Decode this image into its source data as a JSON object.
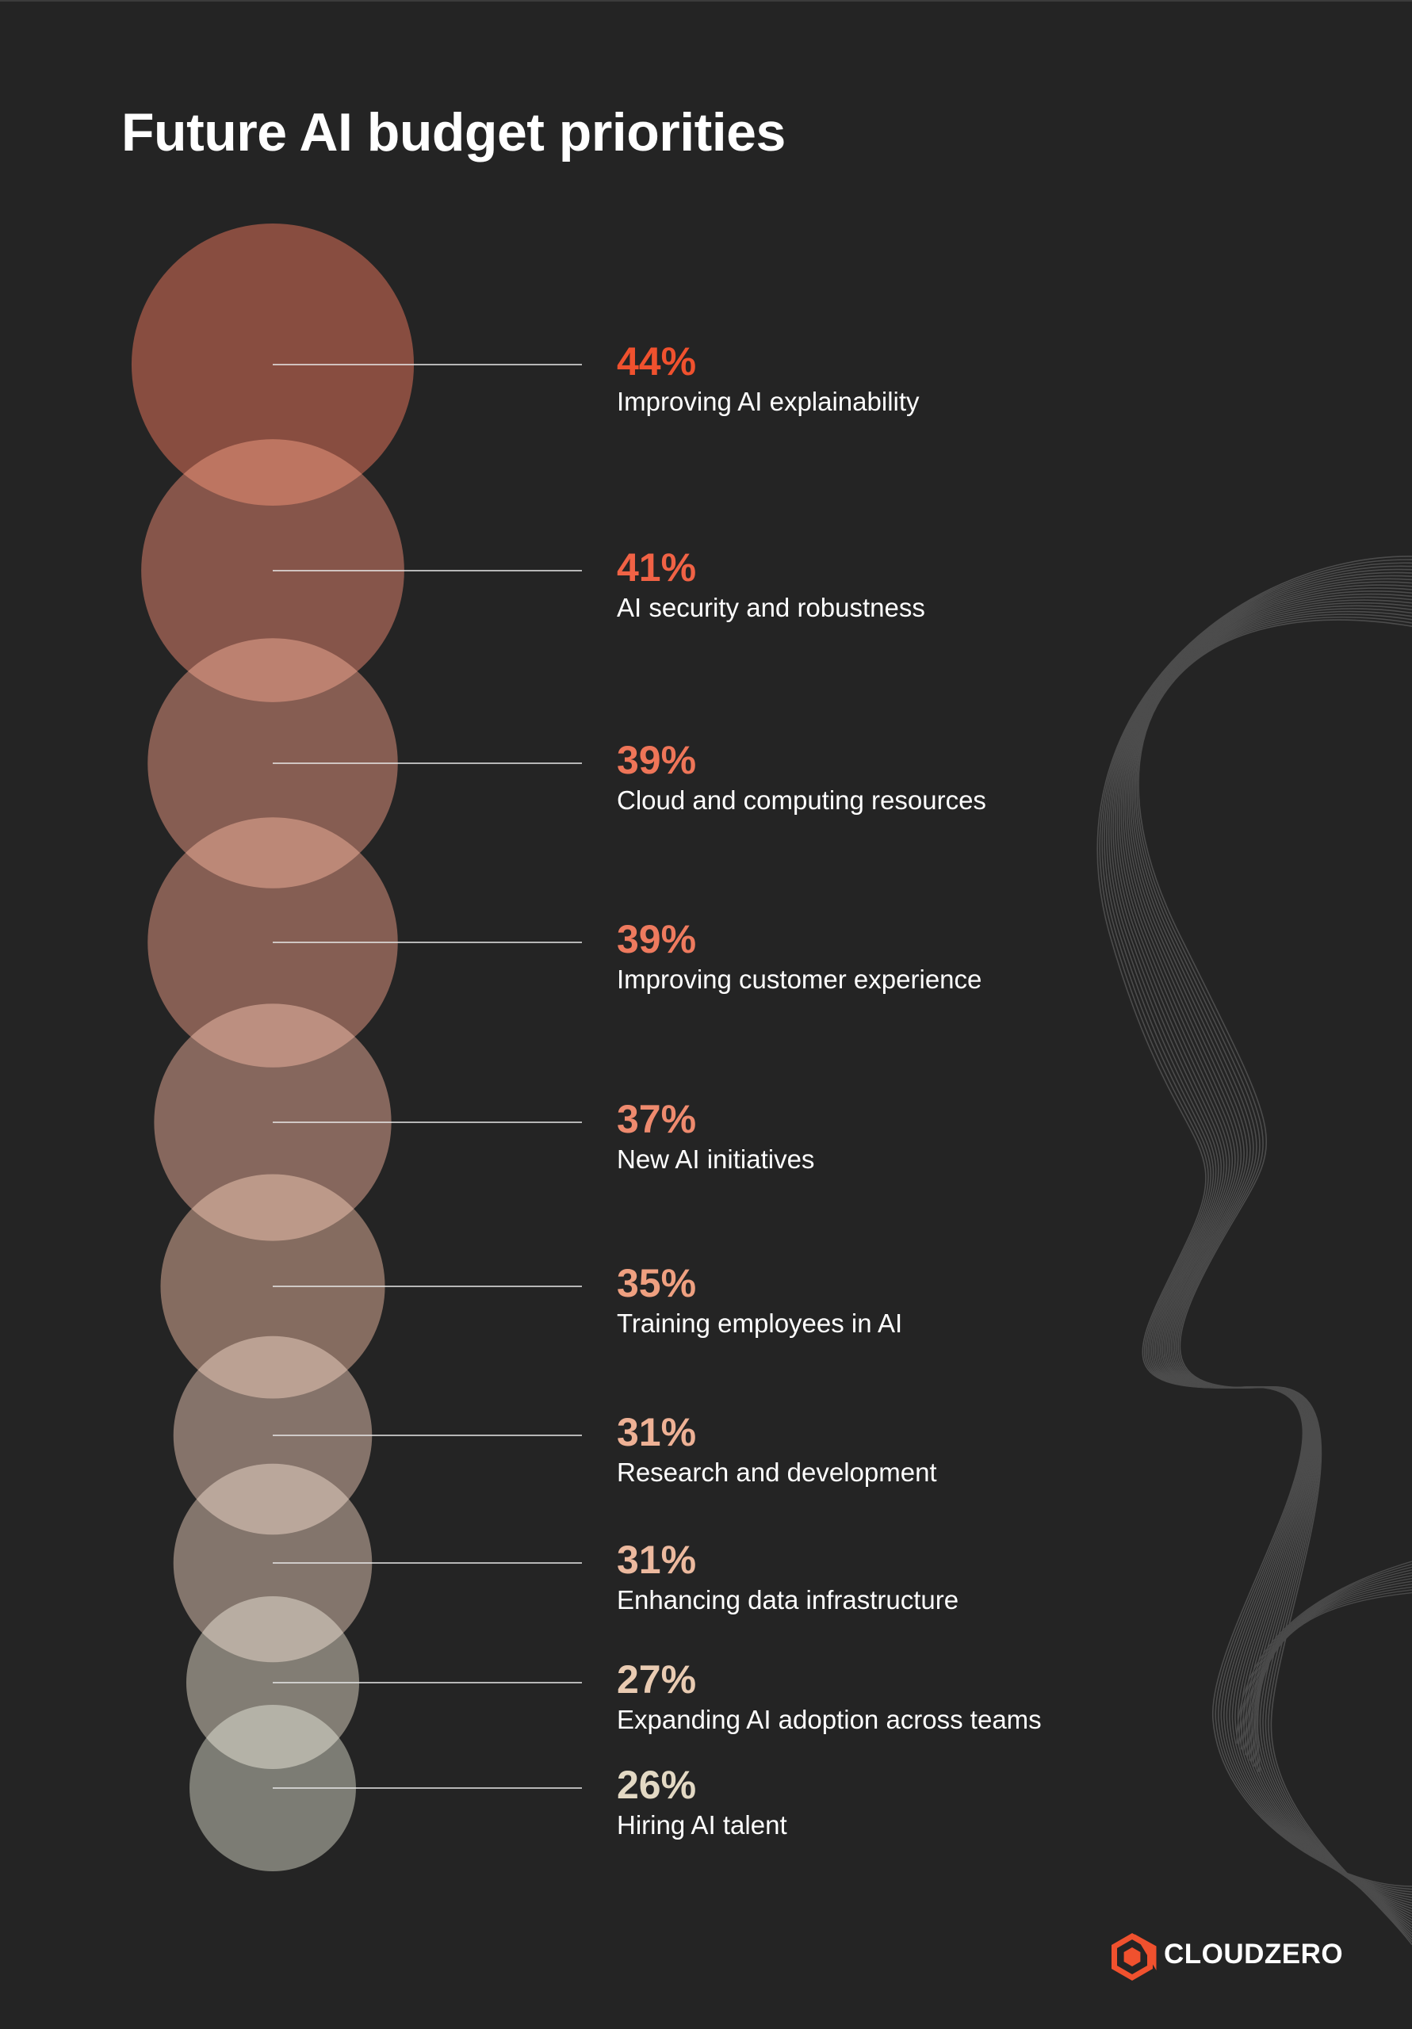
{
  "title": "Future AI budget priorities",
  "brand": {
    "name": "CLOUDZERO",
    "icon": "cloudzero-logo-icon"
  },
  "colors": {
    "background": "#242424",
    "accent_start": "#f0512e",
    "accent_end": "#e3d9c4",
    "text": "#ffffff",
    "decoration": "#4a4a4a"
  },
  "chart_data": {
    "type": "bubble",
    "title": "Future AI budget priorities",
    "unit": "%",
    "categories": [
      "Improving AI explainability",
      "AI security and robustness",
      "Cloud and computing resources",
      "Improving customer experience",
      "New AI initiatives",
      "Training employees in AI",
      "Research and development",
      "Enhancing data infrastructure",
      "Expanding AI adoption across teams",
      "Hiring AI talent"
    ],
    "values": [
      44,
      41,
      39,
      39,
      37,
      35,
      31,
      31,
      27,
      26
    ],
    "labels": [
      "44%",
      "41%",
      "39%",
      "39%",
      "37%",
      "35%",
      "31%",
      "31%",
      "27%",
      "26%"
    ],
    "label_colors": [
      "#f0512e",
      "#f06245",
      "#ee7558",
      "#ee7a5e",
      "#ee8a6e",
      "#efa080",
      "#eeb195",
      "#ecb99e",
      "#e9cbb2",
      "#e3d9c4"
    ],
    "bubble_colors": [
      "#8f3a28",
      "#8b4636",
      "#8b5042",
      "#8a5243",
      "#8b5f50",
      "#8a6656",
      "#8a7064",
      "#887366",
      "#857f72",
      "#7d7e72"
    ]
  }
}
